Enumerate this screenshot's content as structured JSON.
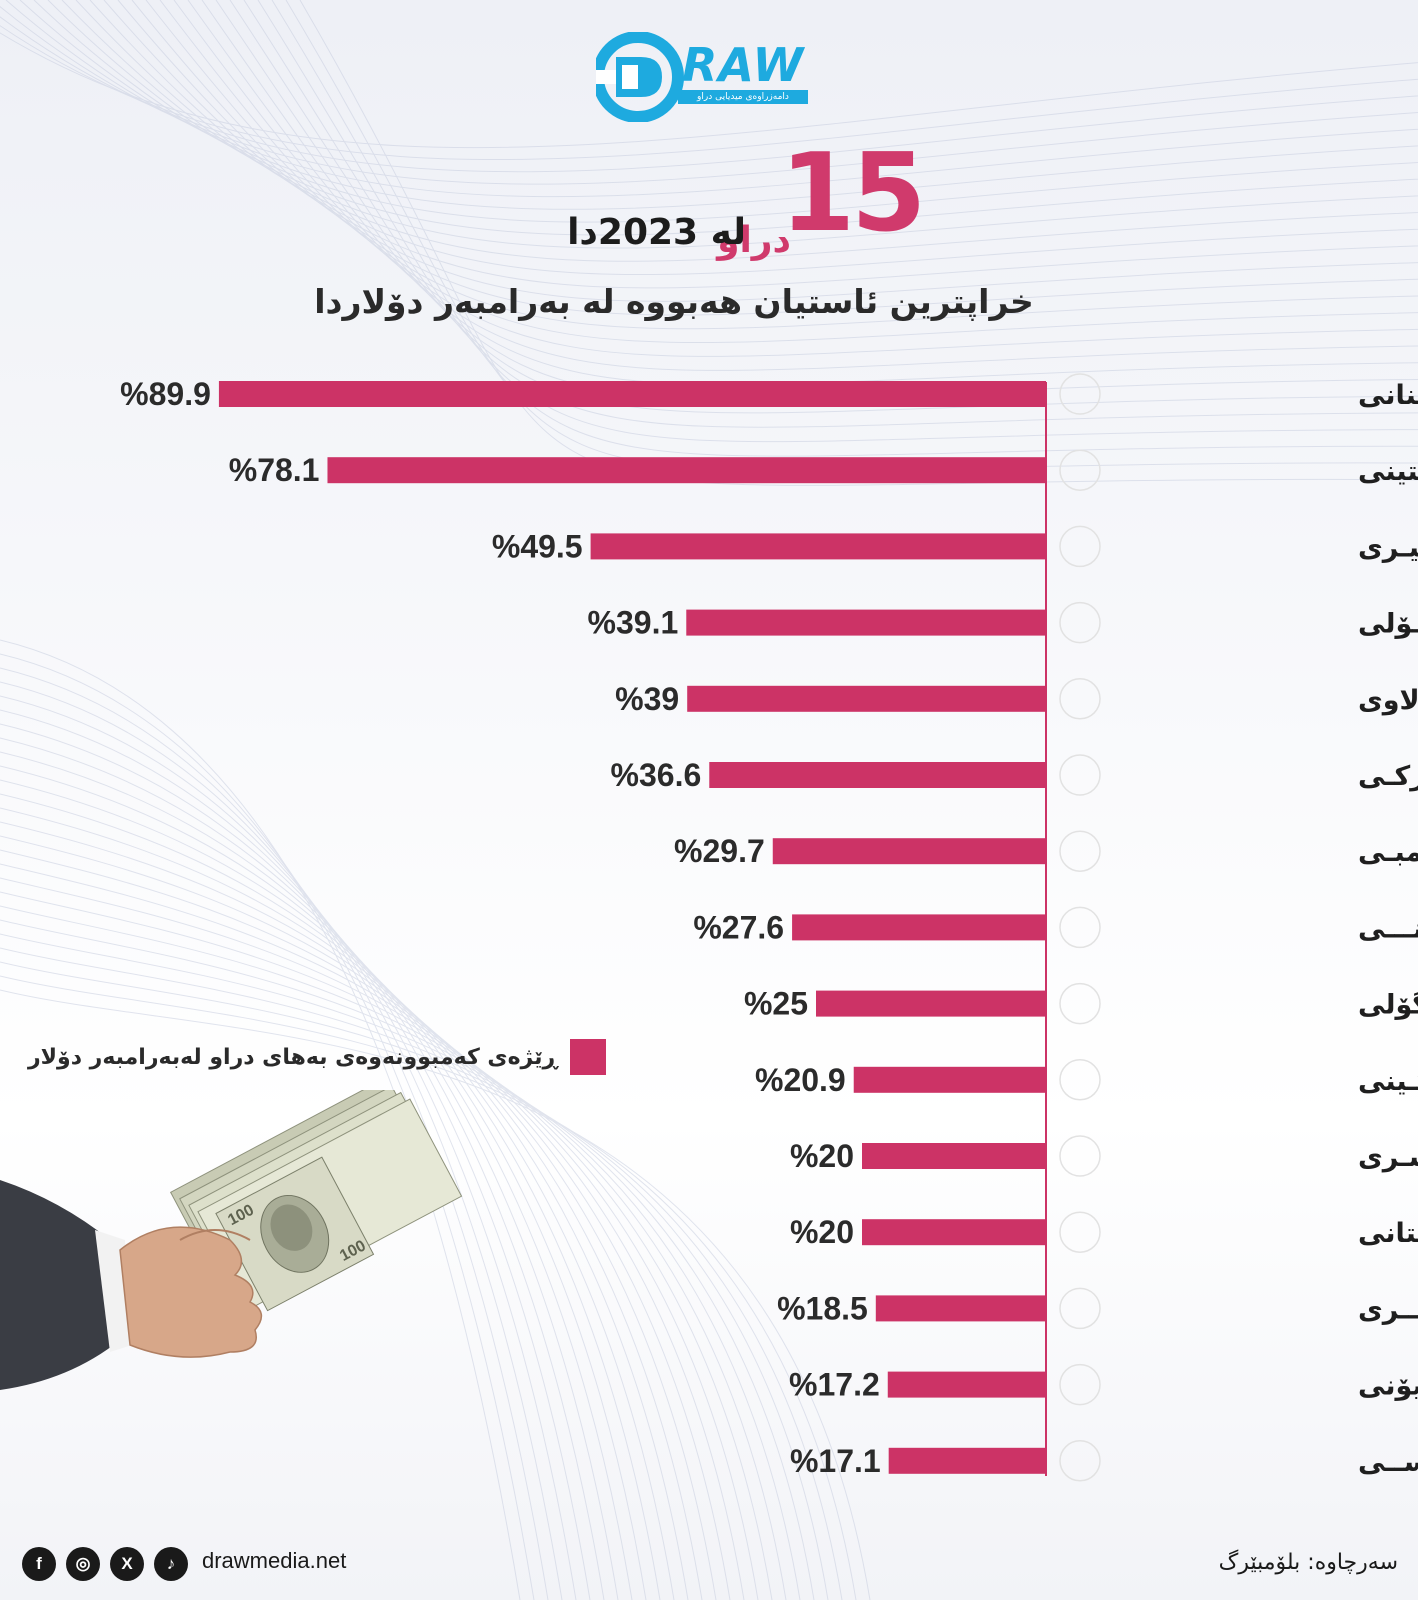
{
  "brand": {
    "logo_text": "RAW",
    "tagline": "دامەزراوەی میدیایی دراو",
    "accent_color": "#1eaadf"
  },
  "headline": {
    "number": "15",
    "word": "دراو",
    "line1": "لە 2023دا",
    "line2": "خراپترین ئاستیان هەبووە لە بەرامبەر دۆلاردا",
    "number_color": "#d03a6c"
  },
  "legend": {
    "label": "ڕێژەی کەمبوونەوەی بەهای دراو لەبەرامبەر دۆلار",
    "color": "#cc3366"
  },
  "chart_data": {
    "type": "bar",
    "orientation": "horizontal",
    "bar_color": "#cc3366",
    "categories": [
      "لیـــرەی لـوبنانی",
      "بیـزو ئەرجەنتینی",
      "نیـــرەی نێجیـری",
      "کـوانزای ئەنگـۆلی",
      "کواشـــای مـالاوی",
      "لیـــرەی تورکـی",
      "کواشـــای زامبـی",
      "فرانکـی برونـــی",
      "فرانکـی کۆنگۆلی",
      "شیلینگـی کـینی",
      "جونیـەی میسـری",
      "ڕوپیەی پاکستانی",
      "دۆلاری لیبـــری",
      "لیۆنـی سیرالیۆنی",
      "ڕۆبڵـی ڕووســی"
    ],
    "values": [
      89.9,
      78.1,
      49.5,
      39.1,
      39,
      36.6,
      29.7,
      27.6,
      25,
      20.9,
      20,
      20,
      18.5,
      17.2,
      17.1
    ],
    "value_labels": [
      "%89.9",
      "%78.1",
      "%49.5",
      "%39.1",
      "%39",
      "%36.6",
      "%29.7",
      "%27.6",
      "%25",
      "%20.9",
      "%20",
      "%20",
      "%18.5",
      "%17.2",
      "%17.1"
    ],
    "flags": [
      "lebanon",
      "argentina",
      "nigeria",
      "angola",
      "malawi",
      "turkey",
      "zambia",
      "brunei",
      "congo",
      "kenya",
      "egypt",
      "pakistan",
      "liberia",
      "sierra-leone",
      "russia"
    ],
    "xlim": [
      0,
      90
    ],
    "series": [
      {
        "name": "ڕێژەی کەمبوونەوەی بەهای دراو لەبەرامبەر دۆلار",
        "values": [
          89.9,
          78.1,
          49.5,
          39.1,
          39,
          36.6,
          29.7,
          27.6,
          25,
          20.9,
          20,
          20,
          18.5,
          17.2,
          17.1
        ]
      }
    ]
  },
  "footer": {
    "icons": [
      "facebook-icon",
      "instagram-icon",
      "x-icon",
      "tiktok-icon"
    ],
    "icon_glyphs": [
      "f",
      "◎",
      "X",
      "♪"
    ],
    "website": "drawmedia.net",
    "source": "سەرچاوە: بلۆمبێرگ"
  }
}
